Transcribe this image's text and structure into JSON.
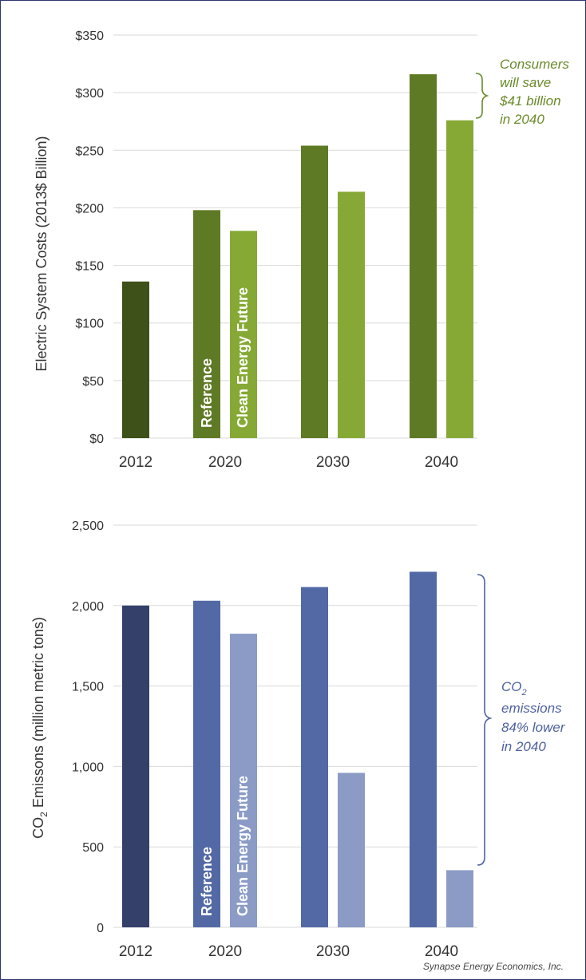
{
  "colors": {
    "top_2012": "#3d5119",
    "top_reference": "#5f7a25",
    "top_clean": "#86a935",
    "top_note": "#6a8a2a",
    "bottom_2012": "#34406a",
    "bottom_reference": "#5369a6",
    "bottom_clean": "#8b9bc6",
    "bottom_note": "#4f62a0",
    "grid": "#d9d9d9"
  },
  "chart_data": [
    {
      "type": "bar",
      "ylabel": "Electric System Costs (2013$ Billion)",
      "ylim": [
        0,
        350
      ],
      "yticks": [
        0,
        50,
        100,
        150,
        200,
        250,
        300,
        350
      ],
      "ytick_labels": [
        "$0",
        "$50",
        "$100",
        "$150",
        "$200",
        "$250",
        "$300",
        "$350"
      ],
      "categories": [
        "2012",
        "2020",
        "2030",
        "2040"
      ],
      "series": [
        {
          "name": "Reference",
          "values": [
            136,
            198,
            254,
            316
          ]
        },
        {
          "name": "Clean Energy Future",
          "values": [
            null,
            180,
            214,
            276
          ]
        }
      ],
      "annotation": [
        "Consumers",
        "will save",
        "$41 billion",
        "in 2040"
      ],
      "grid": true
    },
    {
      "type": "bar",
      "ylabel_main": "CO",
      "ylabel_sub": "2",
      "ylabel_rest": " Emissons (million metric tons)",
      "ylim": [
        0,
        2500
      ],
      "yticks": [
        0,
        500,
        1000,
        1500,
        2000,
        2500
      ],
      "ytick_labels": [
        "0",
        "500",
        "1,000",
        "1,500",
        "2,000",
        "2,500"
      ],
      "categories": [
        "2012",
        "2020",
        "2030",
        "2040"
      ],
      "series": [
        {
          "name": "Reference",
          "values": [
            2000,
            2030,
            2115,
            2210
          ]
        },
        {
          "name": "Clean Energy Future",
          "values": [
            null,
            1825,
            960,
            355
          ]
        }
      ],
      "annotation_main": "CO",
      "annotation_sub": "2",
      "annotation": [
        "emissions",
        "84% lower",
        "in 2040"
      ],
      "grid": true
    }
  ],
  "credit": "Synapse Energy Economics, Inc."
}
